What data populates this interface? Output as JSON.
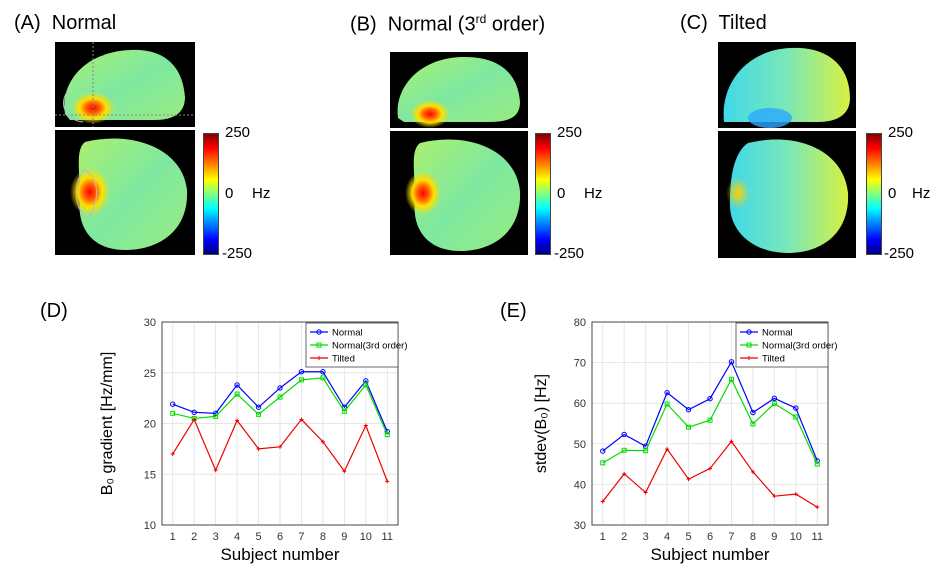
{
  "panels": {
    "a": {
      "label": "(A)",
      "name": "Normal"
    },
    "b": {
      "label": "(B)",
      "name": "Normal (3",
      "sup": "rd",
      "name_end": " order)"
    },
    "c": {
      "label": "(C)",
      "name": "Tilted"
    },
    "d": {
      "label": "(D)"
    },
    "e": {
      "label": "(E)"
    }
  },
  "colorbar": {
    "max": "250",
    "mid": "0",
    "min": "-250",
    "unit": "Hz"
  },
  "chart_data": [
    {
      "id": "D",
      "type": "line",
      "ylabel": "B₀ gradient [Hz/mm]",
      "xlabel": "Subject number",
      "ylim": [
        10,
        30
      ],
      "yticks": [
        10,
        15,
        20,
        25,
        30
      ],
      "x": [
        1,
        2,
        3,
        4,
        5,
        6,
        7,
        8,
        9,
        10,
        11
      ],
      "series": [
        {
          "name": "Normal",
          "color": "#0000ff",
          "marker": "circle",
          "values": [
            21.9,
            21.1,
            21.0,
            23.8,
            21.6,
            23.5,
            25.1,
            25.1,
            21.6,
            24.2,
            19.2
          ]
        },
        {
          "name": "Normal(3rd order)",
          "color": "#00dd00",
          "marker": "square",
          "values": [
            21.0,
            20.5,
            20.7,
            22.9,
            20.9,
            22.6,
            24.3,
            24.5,
            21.2,
            23.8,
            18.9
          ]
        },
        {
          "name": "Tilted",
          "color": "#ee0000",
          "marker": "star",
          "values": [
            17.0,
            20.4,
            15.4,
            20.3,
            17.5,
            17.7,
            20.4,
            18.2,
            15.3,
            19.8,
            14.3
          ]
        }
      ]
    },
    {
      "id": "E",
      "type": "line",
      "ylabel": "stdev(B₀) [Hz]",
      "xlabel": "Subject number",
      "ylim": [
        30,
        80
      ],
      "yticks": [
        30,
        40,
        50,
        60,
        70,
        80
      ],
      "x": [
        1,
        2,
        3,
        4,
        5,
        6,
        7,
        8,
        9,
        10,
        11
      ],
      "series": [
        {
          "name": "Normal",
          "color": "#0000ff",
          "marker": "circle",
          "values": [
            48.2,
            52.3,
            49.4,
            62.6,
            58.4,
            61.1,
            70.2,
            57.7,
            61.2,
            58.8,
            45.8
          ]
        },
        {
          "name": "Normal(3rd order)",
          "color": "#00dd00",
          "marker": "square",
          "values": [
            45.3,
            48.4,
            48.3,
            59.8,
            54.1,
            55.8,
            65.9,
            54.9,
            59.9,
            56.6,
            45.0
          ]
        },
        {
          "name": "Tilted",
          "color": "#ee0000",
          "marker": "star",
          "values": [
            35.8,
            42.6,
            38.0,
            48.7,
            41.3,
            43.9,
            50.6,
            43.1,
            37.1,
            37.6,
            34.4
          ]
        }
      ]
    }
  ]
}
